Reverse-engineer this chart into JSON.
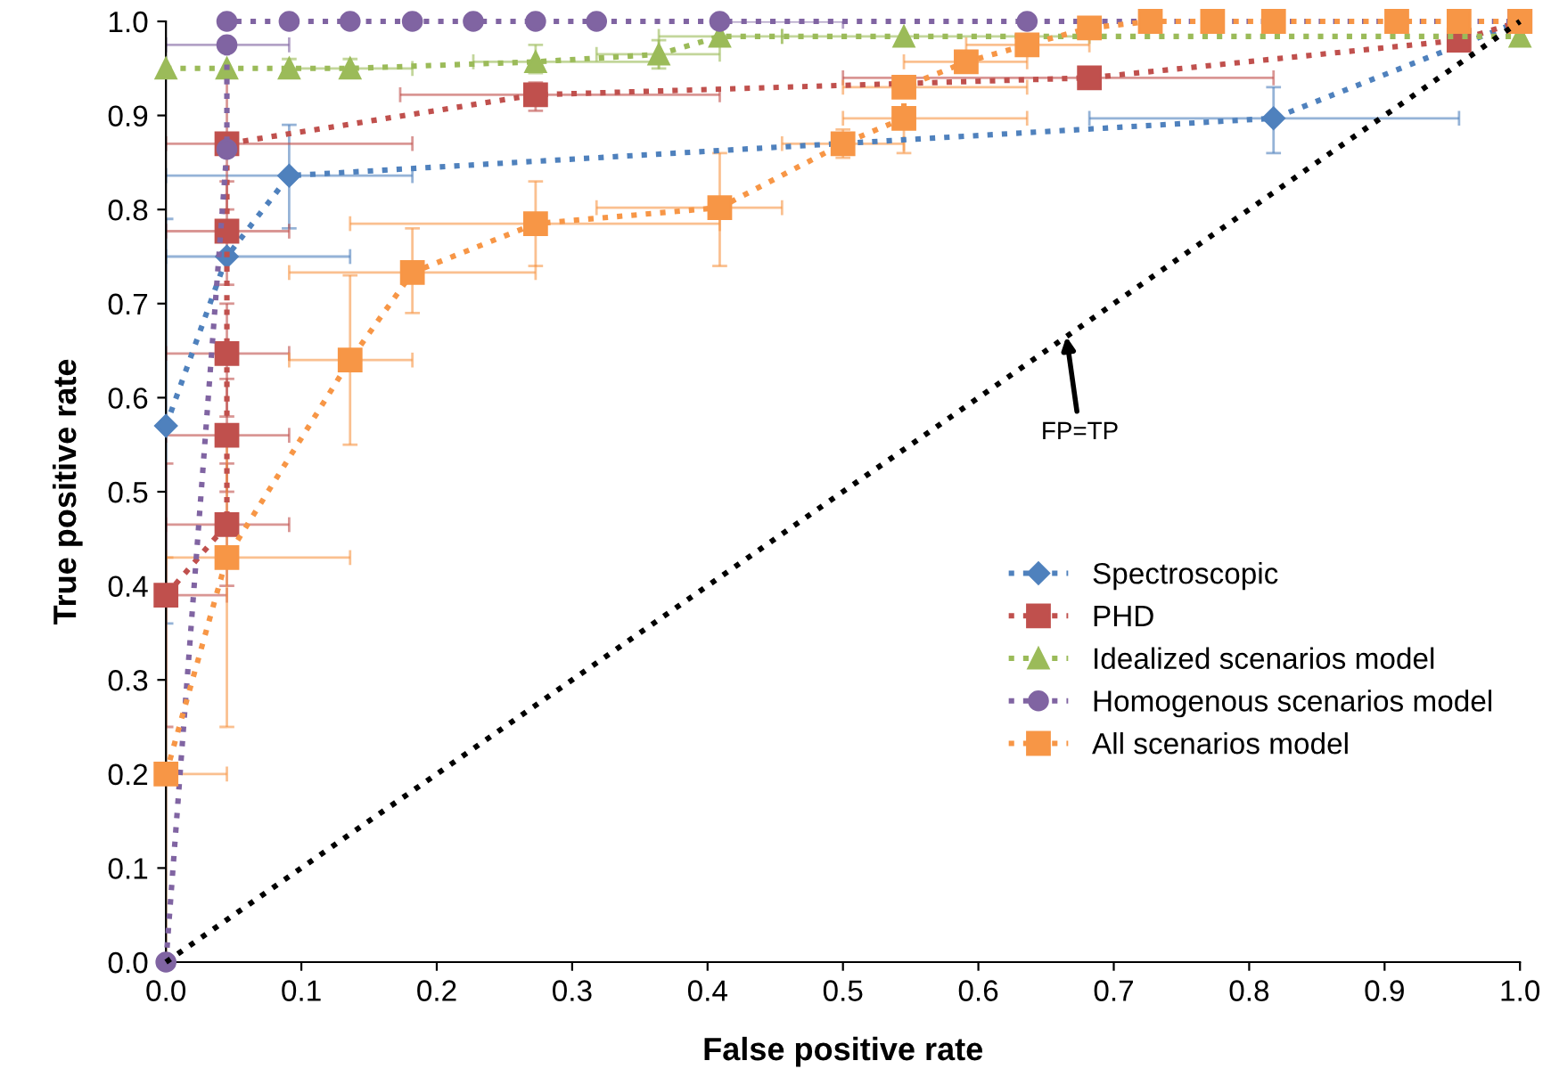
{
  "chart_data": {
    "type": "line",
    "xlabel": "False positive rate",
    "ylabel": "True positive rate",
    "xlim": [
      0,
      1
    ],
    "ylim": [
      0,
      1
    ],
    "xticks": [
      {
        "value": 0,
        "label": "0.0"
      },
      0.1,
      0.2,
      0.3,
      0.4,
      0.5,
      0.6,
      0.7,
      0.8,
      0.9,
      {
        "value": 1,
        "label": "1.0"
      }
    ],
    "yticks": [
      {
        "value": 0,
        "label": "0.0"
      },
      0.1,
      0.2,
      0.3,
      0.4,
      0.5,
      0.6,
      0.7,
      0.8,
      0.9,
      {
        "value": 1,
        "label": "1.0"
      }
    ],
    "grid": false,
    "legend": "right",
    "line_style": "dotted",
    "series": [
      {
        "name": "Spectroscopic",
        "color": "#4f81bd",
        "marker": "diamond",
        "x": [
          0,
          0.045,
          0.091,
          0.818,
          1
        ],
        "values": [
          0.57,
          0.75,
          0.836,
          0.897,
          1
        ],
        "errors": [
          [
            0.36,
            0.79
          ],
          null,
          [
            0.78,
            0.89
          ],
          [
            0.86,
            0.93
          ],
          null
        ],
        "xerrors": [
          null,
          [
            0,
            0.136
          ],
          [
            0,
            0.182
          ],
          [
            0.682,
            0.955
          ],
          null
        ]
      },
      {
        "name": "PHD",
        "color": "#c0504d",
        "marker": "square",
        "x": [
          0,
          0.045,
          0.045,
          0.045,
          0.045,
          0.045,
          0.273,
          0.682,
          0.955,
          1
        ],
        "values": [
          0.39,
          0.465,
          0.56,
          0.647,
          0.777,
          0.87,
          0.922,
          0.94,
          0.98,
          1
        ],
        "errors": [
          [
            0.25,
            0.53
          ],
          [
            0.4,
            0.53
          ],
          [
            0.5,
            0.62
          ],
          [
            0.58,
            0.7
          ],
          [
            0.72,
            0.83
          ],
          [
            0.8,
            0.94
          ],
          [
            0.905,
            0.935
          ],
          null,
          null,
          null
        ],
        "xerrors": [
          [
            0,
            0.045
          ],
          [
            0,
            0.091
          ],
          [
            0,
            0.091
          ],
          [
            0,
            0.091
          ],
          [
            0,
            0.091
          ],
          [
            0,
            0.182
          ],
          [
            0.173,
            0.409
          ],
          [
            0.5,
            0.818
          ],
          null,
          null
        ]
      },
      {
        "name": "Idealized scenarios model",
        "color": "#9bbb59",
        "marker": "triangle",
        "x": [
          0,
          0.045,
          0.091,
          0.136,
          0.273,
          0.364,
          0.409,
          0.545,
          1
        ],
        "values": [
          0.95,
          0.95,
          0.95,
          0.95,
          0.957,
          0.965,
          0.984,
          0.984,
          0.984
        ],
        "errors": [
          null,
          null,
          [
            0.94,
            0.96
          ],
          [
            0.94,
            0.96
          ],
          [
            0.945,
            0.975
          ],
          [
            0.95,
            0.98
          ],
          null,
          null,
          null
        ],
        "xerrors": [
          null,
          null,
          null,
          [
            0.091,
            0.182
          ],
          [
            0.227,
            0.364
          ],
          [
            0.318,
            0.409
          ],
          [
            0.364,
            0.455
          ],
          [
            0.455,
            0.682
          ],
          null
        ]
      },
      {
        "name": "Homogenous scenarios model",
        "color": "#8064a2",
        "marker": "circle",
        "x": [
          0,
          0.045,
          0.045,
          0.045,
          0.091,
          0.136,
          0.182,
          0.227,
          0.273,
          0.318,
          0.409,
          0.636,
          1
        ],
        "values": [
          0,
          0.864,
          0.975,
          1,
          1,
          1,
          1,
          1,
          1,
          1,
          1,
          1,
          1
        ],
        "errors": [
          null,
          null,
          null,
          null,
          null,
          null,
          null,
          null,
          null,
          null,
          null,
          null,
          null
        ],
        "xerrors": [
          null,
          null,
          [
            0,
            0.091
          ],
          null,
          null,
          null,
          null,
          null,
          null,
          null,
          [
            0.409,
            0.5
          ],
          null,
          null
        ]
      },
      {
        "name": "All scenarios model",
        "color": "#f79646",
        "marker": "square",
        "x": [
          0,
          0.045,
          0.136,
          0.182,
          0.273,
          0.409,
          0.5,
          0.545,
          0.545,
          0.591,
          0.636,
          0.682,
          0.727,
          0.773,
          0.818,
          0.909,
          0.955,
          1
        ],
        "values": [
          0.2,
          0.43,
          0.64,
          0.733,
          0.785,
          0.802,
          0.87,
          0.897,
          0.93,
          0.957,
          0.975,
          0.993,
          1,
          1,
          1,
          1,
          1,
          1
        ],
        "errors": [
          [
            0,
            0.43
          ],
          [
            0.25,
            0.55
          ],
          [
            0.55,
            0.73
          ],
          [
            0.69,
            0.78
          ],
          [
            0.74,
            0.83
          ],
          [
            0.74,
            0.86
          ],
          [
            0.855,
            0.885
          ],
          [
            0.86,
            0.897
          ],
          null,
          null,
          null,
          null,
          null,
          null,
          null,
          null,
          null,
          null
        ],
        "xerrors": [
          [
            0,
            0.045
          ],
          [
            0,
            0.136
          ],
          [
            0.091,
            0.182
          ],
          [
            0.091,
            0.273
          ],
          [
            0.136,
            0.409
          ],
          [
            0.318,
            0.455
          ],
          [
            0.455,
            0.545
          ],
          [
            0.5,
            0.636
          ],
          [
            0.5,
            0.636
          ],
          [
            0.545,
            0.636
          ],
          [
            0.591,
            0.682
          ],
          null,
          null,
          null,
          null,
          null,
          null,
          null
        ]
      },
      {
        "color": "#000000",
        "marker": "none",
        "x": [
          0,
          1
        ],
        "values": [
          0,
          1
        ]
      }
    ],
    "annotations": [
      {
        "text": "FP=TP",
        "x": 0.665,
        "y": 0.665
      }
    ]
  }
}
